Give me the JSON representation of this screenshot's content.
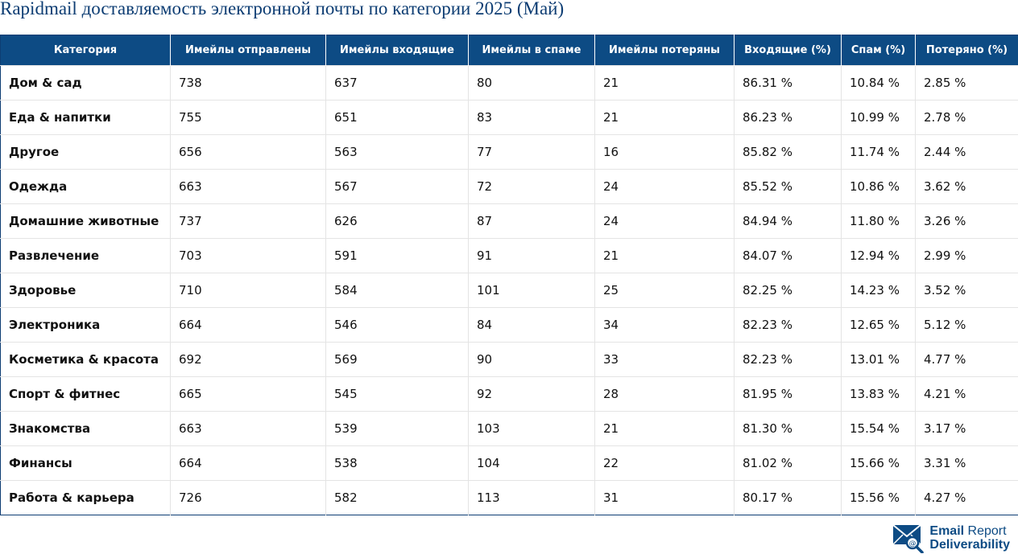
{
  "title": "Rapidmail доставляемость электронной почты по категории 2025 (Май)",
  "table": {
    "headers": [
      "Категория",
      "Имейлы отправлены",
      "Имейлы входящие",
      "Имейлы в спаме",
      "Имейлы потеряны",
      "Входящие (%)",
      "Спам (%)",
      "Потеряно (%)"
    ],
    "rows": [
      [
        "Дом & сад",
        "738",
        "637",
        "80",
        "21",
        "86.31 %",
        "10.84 %",
        "2.85 %"
      ],
      [
        "Еда & напитки",
        "755",
        "651",
        "83",
        "21",
        "86.23 %",
        "10.99 %",
        "2.78 %"
      ],
      [
        "Другое",
        "656",
        "563",
        "77",
        "16",
        "85.82 %",
        "11.74 %",
        "2.44 %"
      ],
      [
        "Одежда",
        "663",
        "567",
        "72",
        "24",
        "85.52 %",
        "10.86 %",
        "3.62 %"
      ],
      [
        "Домашние животные",
        "737",
        "626",
        "87",
        "24",
        "84.94 %",
        "11.80 %",
        "3.26 %"
      ],
      [
        "Развлечение",
        "703",
        "591",
        "91",
        "21",
        "84.07 %",
        "12.94 %",
        "2.99 %"
      ],
      [
        "Здоровье",
        "710",
        "584",
        "101",
        "25",
        "82.25 %",
        "14.23 %",
        "3.52 %"
      ],
      [
        "Электроника",
        "664",
        "546",
        "84",
        "34",
        "82.23 %",
        "12.65 %",
        "5.12 %"
      ],
      [
        "Косметика & красота",
        "692",
        "569",
        "90",
        "33",
        "82.23 %",
        "13.01 %",
        "4.77 %"
      ],
      [
        "Спорт & фитнес",
        "665",
        "545",
        "92",
        "28",
        "81.95 %",
        "13.83 %",
        "4.21 %"
      ],
      [
        "Знакомства",
        "663",
        "539",
        "103",
        "21",
        "81.30 %",
        "15.54 %",
        "3.17 %"
      ],
      [
        "Финансы",
        "664",
        "538",
        "104",
        "22",
        "81.02 %",
        "15.66 %",
        "3.31 %"
      ],
      [
        "Работа & карьера",
        "726",
        "582",
        "113",
        "31",
        "80.17 %",
        "15.56 %",
        "4.27 %"
      ]
    ]
  },
  "logo": {
    "line1_bold": "Email",
    "line1_rest": " Report",
    "line2": "Deliverability",
    "icon": "envelope-at-magnifier-icon",
    "color": "#0d4b84"
  }
}
